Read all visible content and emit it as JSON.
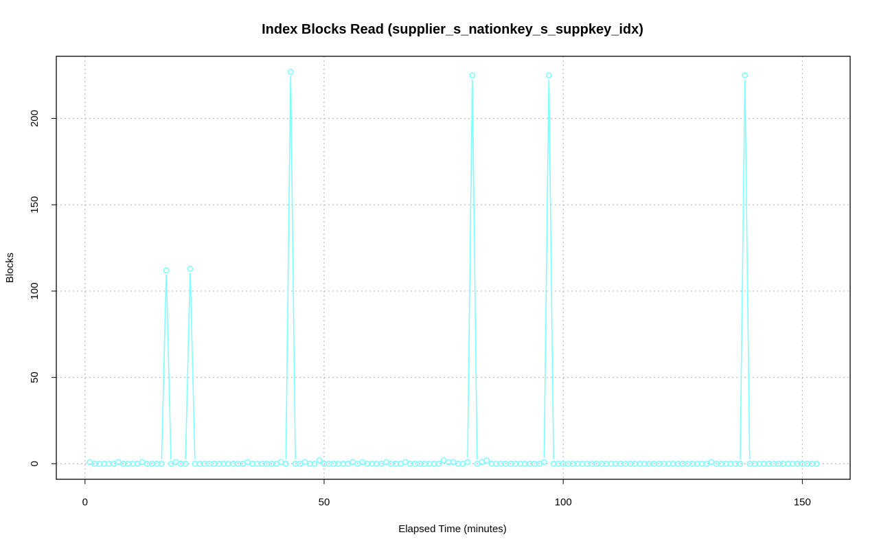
{
  "chart_data": {
    "type": "line",
    "title": "Index Blocks Read (supplier_s_nationkey_s_suppkey_idx)",
    "xlabel": "Elapsed Time (minutes)",
    "ylabel": "Blocks",
    "xlim": [
      -6,
      160
    ],
    "ylim": [
      -9,
      236
    ],
    "x_ticks": [
      0,
      50,
      100,
      150
    ],
    "y_ticks": [
      0,
      50,
      100,
      150,
      200
    ],
    "grid": true,
    "legend": "none",
    "series_color": "#7fffff",
    "series": [
      {
        "x": [
          1,
          2,
          3,
          4,
          5,
          6,
          7,
          8,
          9,
          10,
          11,
          12,
          13,
          14,
          15,
          16,
          17,
          18,
          19,
          20,
          21,
          22,
          23,
          24,
          25,
          26,
          27,
          28,
          29,
          30,
          31,
          32,
          33,
          34,
          35,
          36,
          37,
          38,
          39,
          40,
          41,
          42,
          43,
          44,
          45,
          46,
          47,
          48,
          49,
          50,
          51,
          52,
          53,
          54,
          55,
          56,
          57,
          58,
          59,
          60,
          61,
          62,
          63,
          64,
          65,
          66,
          67,
          68,
          69,
          70,
          71,
          72,
          73,
          74,
          75,
          76,
          77,
          78,
          79,
          80,
          81,
          82,
          83,
          84,
          85,
          86,
          87,
          88,
          89,
          90,
          91,
          92,
          93,
          94,
          95,
          96,
          97,
          98,
          99,
          100,
          101,
          102,
          103,
          104,
          105,
          106,
          107,
          108,
          109,
          110,
          111,
          112,
          113,
          114,
          115,
          116,
          117,
          118,
          119,
          120,
          121,
          122,
          123,
          124,
          125,
          126,
          127,
          128,
          129,
          130,
          131,
          132,
          133,
          134,
          135,
          136,
          137,
          138,
          139,
          140,
          141,
          142,
          143,
          144,
          145,
          146,
          147,
          148,
          149,
          150,
          151,
          152,
          153
        ],
        "values": [
          1,
          0,
          0,
          0,
          0,
          0,
          1,
          0,
          0,
          0,
          0,
          1,
          0,
          0,
          0,
          0,
          112,
          0,
          1,
          0,
          0,
          113,
          0,
          0,
          0,
          0,
          0,
          0,
          0,
          0,
          0,
          0,
          0,
          1,
          0,
          0,
          0,
          0,
          0,
          0,
          1,
          0,
          227,
          0,
          0,
          1,
          0,
          0,
          2,
          0,
          0,
          0,
          0,
          0,
          0,
          1,
          0,
          1,
          0,
          0,
          0,
          0,
          1,
          0,
          0,
          0,
          1,
          0,
          0,
          0,
          0,
          0,
          0,
          0,
          2,
          1,
          1,
          0,
          0,
          1,
          225,
          0,
          1,
          2,
          0,
          0,
          0,
          0,
          0,
          0,
          0,
          0,
          0,
          0,
          0,
          1,
          225,
          0,
          0,
          0,
          0,
          0,
          0,
          0,
          0,
          0,
          0,
          0,
          0,
          0,
          0,
          0,
          0,
          0,
          0,
          0,
          0,
          0,
          0,
          0,
          0,
          0,
          0,
          0,
          0,
          0,
          0,
          0,
          0,
          0,
          1,
          0,
          0,
          0,
          0,
          0,
          0,
          225,
          0,
          0,
          0,
          0,
          0,
          0,
          0,
          0,
          0,
          0,
          0,
          0,
          0,
          0,
          0
        ]
      }
    ]
  }
}
